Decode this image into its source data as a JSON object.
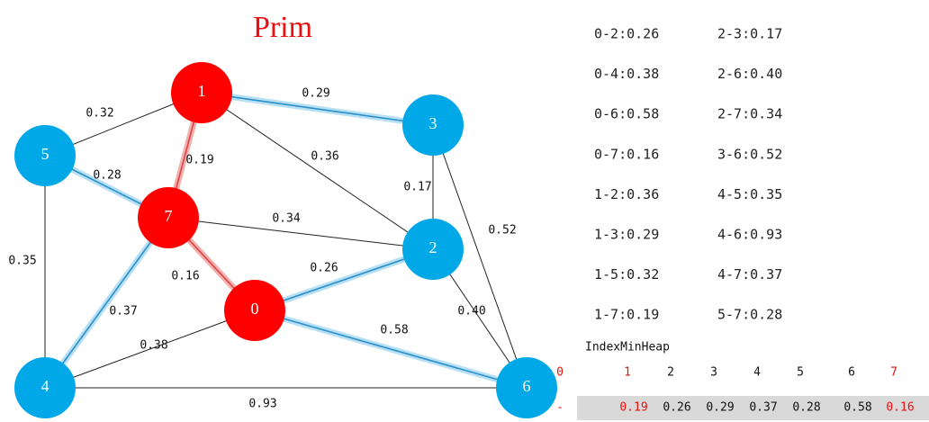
{
  "title": "Prim",
  "nodes": [
    {
      "label": "0"
    },
    {
      "label": "1"
    },
    {
      "label": "2"
    },
    {
      "label": "3"
    },
    {
      "label": "4"
    },
    {
      "label": "5"
    },
    {
      "label": "6"
    },
    {
      "label": "7"
    }
  ],
  "edges": [
    {
      "label": "0.32"
    },
    {
      "label": "0.29"
    },
    {
      "label": "0.19"
    },
    {
      "label": "0.36"
    },
    {
      "label": "0.17"
    },
    {
      "label": "0.52"
    },
    {
      "label": "0.28"
    },
    {
      "label": "0.35"
    },
    {
      "label": "0.34"
    },
    {
      "label": "0.16"
    },
    {
      "label": "0.26"
    },
    {
      "label": "0.37"
    },
    {
      "label": "0.38"
    },
    {
      "label": "0.58"
    },
    {
      "label": "0.40"
    },
    {
      "label": "0.93"
    }
  ],
  "edge_list": [
    [
      "0-2:0.26",
      "2-3:0.17"
    ],
    [
      "0-4:0.38",
      "2-6:0.40"
    ],
    [
      "0-6:0.58",
      "2-7:0.34"
    ],
    [
      "0-7:0.16",
      "3-6:0.52"
    ],
    [
      "1-2:0.36",
      "4-5:0.35"
    ],
    [
      "1-3:0.29",
      "4-6:0.93"
    ],
    [
      "1-5:0.32",
      "4-7:0.37"
    ],
    [
      "1-7:0.19",
      "5-7:0.28"
    ]
  ],
  "heap": {
    "title": "IndexMinHeap",
    "indices": [
      "0",
      "1",
      "2",
      "3",
      "4",
      "5",
      "6",
      "7"
    ],
    "values": [
      "-",
      "0.19",
      "0.26",
      "0.29",
      "0.37",
      "0.28",
      "0.58",
      "0.16"
    ]
  }
}
